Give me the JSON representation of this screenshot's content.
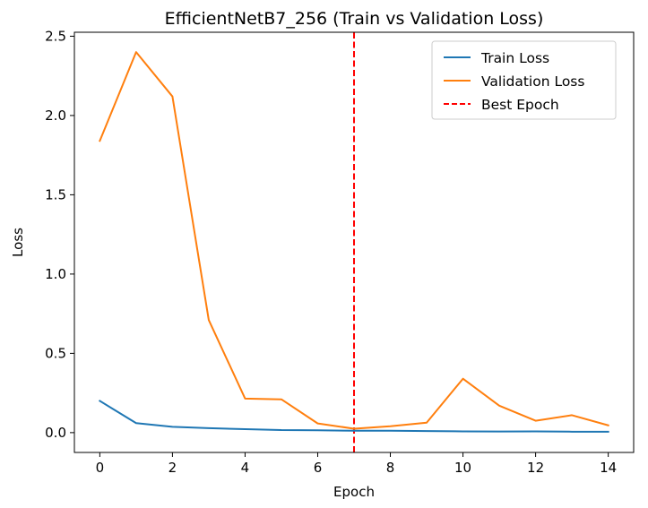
{
  "chart_data": {
    "type": "line",
    "title": "EfficientNetB7_256 (Train vs Validation Loss)",
    "xlabel": "Epoch",
    "ylabel": "Loss",
    "xlim": [
      -0.7,
      14.7
    ],
    "ylim": [
      -0.125,
      2.525
    ],
    "xticks": [
      0,
      2,
      4,
      6,
      8,
      10,
      12,
      14
    ],
    "yticks": [
      0.0,
      0.5,
      1.0,
      1.5,
      2.0,
      2.5
    ],
    "xtick_labels": [
      "0",
      "2",
      "4",
      "6",
      "8",
      "10",
      "12",
      "14"
    ],
    "ytick_labels": [
      "0.0",
      "0.5",
      "1.0",
      "1.5",
      "2.0",
      "2.5"
    ],
    "grid": false,
    "legend_position": "upper-right",
    "x": [
      0,
      1,
      2,
      3,
      4,
      5,
      6,
      7,
      8,
      9,
      10,
      11,
      12,
      13,
      14
    ],
    "series": [
      {
        "name": "Train Loss",
        "color": "#1f77b4",
        "values": [
          0.2,
          0.06,
          0.037,
          0.028,
          0.022,
          0.016,
          0.015,
          0.012,
          0.012,
          0.01,
          0.008,
          0.007,
          0.008,
          0.006,
          0.006
        ]
      },
      {
        "name": "Validation Loss",
        "color": "#ff7f0e",
        "values": [
          1.84,
          2.4,
          2.12,
          0.71,
          0.215,
          0.21,
          0.058,
          0.025,
          0.04,
          0.063,
          0.34,
          0.17,
          0.075,
          0.11,
          0.046
        ]
      }
    ],
    "reference_lines": [
      {
        "name": "Best Epoch",
        "orientation": "vertical",
        "x": 7,
        "color": "#ff0000",
        "style": "dashed"
      }
    ]
  }
}
